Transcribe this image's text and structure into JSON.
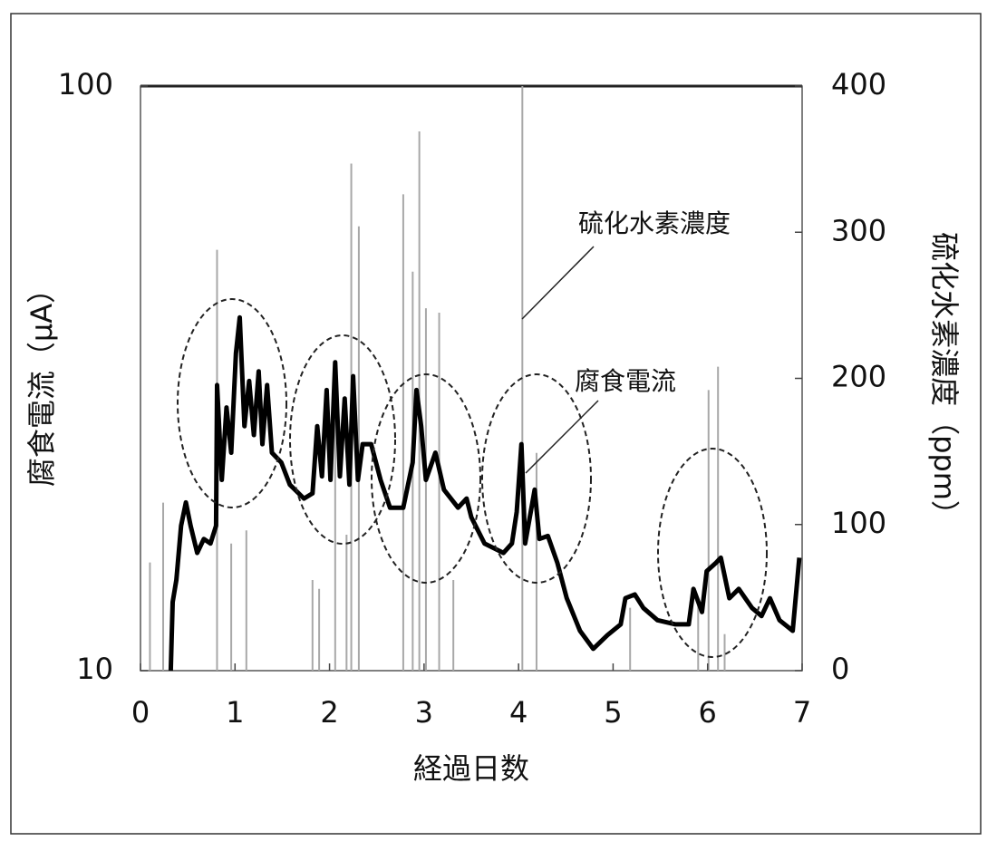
{
  "chart_data": {
    "type": "line",
    "xlabel": "経過日数",
    "ylabel": "腐食電流（μA）",
    "y2label": "硫化水素濃度（ppm）",
    "xlim": [
      0,
      7
    ],
    "xticks": [
      0,
      1,
      2,
      3,
      4,
      5,
      6,
      7
    ],
    "ylim": [
      10,
      100
    ],
    "yticks": [
      10,
      100
    ],
    "yscale": "log",
    "y2lim": [
      0,
      400
    ],
    "y2ticks": [
      0,
      100,
      200,
      300,
      400
    ],
    "grid": false,
    "series": [
      {
        "name": "腐食電流",
        "type": "line",
        "color": "#000000",
        "x": [
          0.32,
          0.34,
          0.38,
          0.43,
          0.48,
          0.53,
          0.6,
          0.67,
          0.74,
          0.8,
          0.81,
          0.86,
          0.91,
          0.96,
          1.01,
          1.05,
          1.1,
          1.15,
          1.2,
          1.25,
          1.29,
          1.34,
          1.39,
          1.49,
          1.58,
          1.73,
          1.82,
          1.87,
          1.92,
          1.97,
          2.01,
          2.06,
          2.11,
          2.16,
          2.21,
          2.25,
          2.3,
          2.35,
          2.44,
          2.54,
          2.64,
          2.78,
          2.88,
          2.92,
          2.97,
          3.02,
          3.12,
          3.21,
          3.36,
          3.45,
          3.5,
          3.64,
          3.84,
          3.93,
          3.98,
          4.03,
          4.07,
          4.17,
          4.22,
          4.31,
          4.41,
          4.51,
          4.65,
          4.79,
          4.94,
          5.08,
          5.13,
          5.23,
          5.32,
          5.47,
          5.66,
          5.8,
          5.85,
          5.94,
          5.99,
          6.09,
          6.14,
          6.23,
          6.33,
          6.47,
          6.57,
          6.66,
          6.76,
          6.9,
          6.97
        ],
        "values": [
          10.0,
          13.1,
          14.3,
          17.7,
          19.4,
          17.7,
          15.9,
          16.8,
          16.5,
          17.7,
          30.8,
          21.2,
          28.2,
          23.6,
          34.9,
          40.2,
          26.2,
          31.3,
          25.3,
          32.5,
          24.4,
          30.8,
          23.6,
          22.7,
          20.8,
          19.7,
          20.1,
          26.2,
          21.5,
          30.2,
          21.2,
          33.7,
          21.5,
          29.2,
          20.8,
          31.9,
          21.2,
          24.4,
          24.4,
          21.2,
          19.0,
          19.0,
          22.7,
          30.2,
          26.2,
          21.2,
          23.6,
          20.4,
          19.0,
          19.7,
          18.3,
          16.5,
          15.9,
          16.5,
          18.7,
          24.4,
          16.5,
          20.4,
          16.8,
          17.0,
          15.3,
          13.3,
          11.7,
          10.9,
          11.5,
          12.0,
          13.3,
          13.5,
          12.8,
          12.2,
          12.0,
          12.0,
          13.8,
          12.6,
          14.8,
          15.3,
          15.6,
          13.3,
          13.8,
          12.8,
          12.4,
          13.3,
          12.2,
          11.7,
          15.6
        ]
      },
      {
        "name": "硫化水素濃度",
        "type": "stem",
        "color": "#a8a8a8",
        "axis": "y2",
        "x": [
          0.1,
          0.24,
          0.81,
          0.96,
          1.12,
          1.82,
          1.89,
          2.06,
          2.18,
          2.23,
          2.31,
          2.78,
          2.88,
          2.95,
          3.02,
          3.16,
          3.31,
          4.04,
          4.19,
          5.18,
          5.9,
          6.01,
          6.11,
          6.18
        ],
        "values": [
          74,
          115,
          288,
          87,
          96,
          62,
          56,
          174,
          93,
          347,
          304,
          326,
          273,
          369,
          248,
          245,
          62,
          400,
          149,
          43,
          50,
          192,
          208,
          25
        ]
      }
    ]
  }
}
